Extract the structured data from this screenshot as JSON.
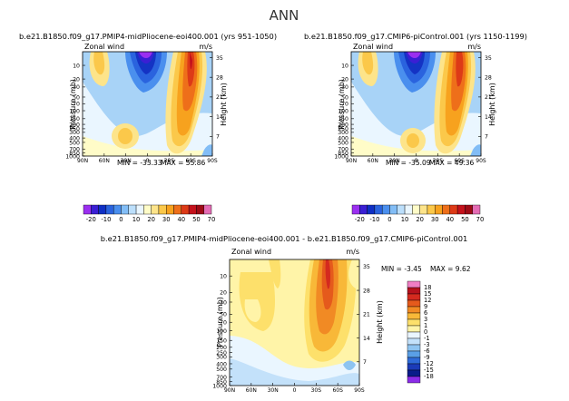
{
  "page_title": "ANN",
  "panels": [
    {
      "id": "left",
      "title": "b.e21.B1850.f09_g17.PMIP4-midPliocene-eoi400.001 (yrs 951-1050)",
      "variable": "Zonal wind",
      "units": "m/s",
      "min_text": "MIN = -33.33",
      "max_text": "MAX = 55.86"
    },
    {
      "id": "right",
      "title": "b.e21.B1850.f09_g17.CMIP6-piControl.001 (yrs 1150-1199)",
      "variable": "Zonal wind",
      "units": "m/s",
      "min_text": "MIN = -35.09",
      "max_text": "MAX = 49.36"
    },
    {
      "id": "diff",
      "title": "b.e21.B1850.f09_g17.PMIP4-midPliocene-eoi400.001 - b.e21.B1850.f09_g17.CMIP6-piControl.001",
      "variable": "Zonal wind",
      "units": "m/s",
      "min_text": "MIN = -3.45",
      "max_text": "MAX = 9.62"
    }
  ],
  "colorbar_top": {
    "labels": [
      "-20",
      "-10",
      "0",
      "10",
      "20",
      "30",
      "40",
      "50",
      "70"
    ],
    "colors": [
      "#9b2ff0",
      "#3a1fd4",
      "#0f2fc4",
      "#2a63de",
      "#4a8fee",
      "#82bdf6",
      "#bcdffb",
      "#eaf6ff",
      "#fffcc8",
      "#fde48a",
      "#fbc84a",
      "#f7a21e",
      "#ee6f1a",
      "#dd3a17",
      "#c4121c",
      "#9e0b16",
      "#e46cb4"
    ]
  },
  "colorbar_diff": {
    "labels": [
      "18",
      "15",
      "12",
      "9",
      "6",
      "3",
      "1",
      "0",
      "-1",
      "-3",
      "-6",
      "-9",
      "-12",
      "-15",
      "-18"
    ],
    "colors": [
      "#f07ec4",
      "#b5121d",
      "#d42a1f",
      "#e55a1c",
      "#f18a24",
      "#f8b838",
      "#fde06b",
      "#fff4a8",
      "#eaf6ff",
      "#c3e1fa",
      "#8ec4f1",
      "#5a9fe6",
      "#2f6bd8",
      "#1b3bb8",
      "#0a1c8a",
      "#8b2ce8"
    ]
  },
  "chart_data": [
    {
      "type": "contour",
      "panel": "left",
      "field": "Zonal wind (annual mean)",
      "x": [
        "90N",
        "60N",
        "30N",
        "0",
        "30S",
        "60S",
        "90S"
      ],
      "y_pressure_mb": [
        "10",
        "20",
        "30",
        "50",
        "70",
        "100",
        "150",
        "200",
        "250",
        "300",
        "400",
        "500",
        "700",
        "850",
        "1000"
      ],
      "y_height_km": [
        "35",
        "28",
        "21",
        "14",
        "7"
      ],
      "levels": [
        -20,
        -10,
        0,
        10,
        20,
        30,
        40,
        50,
        70
      ],
      "min": -33.33,
      "max": 55.86
    },
    {
      "type": "contour",
      "panel": "right",
      "field": "Zonal wind (annual mean)",
      "x": [
        "90N",
        "60N",
        "30N",
        "0",
        "30S",
        "60S",
        "90S"
      ],
      "y_pressure_mb": [
        "10",
        "20",
        "30",
        "50",
        "70",
        "100",
        "150",
        "200",
        "250",
        "300",
        "400",
        "500",
        "700",
        "850",
        "1000"
      ],
      "y_height_km": [
        "35",
        "28",
        "21",
        "14",
        "7"
      ],
      "levels": [
        -20,
        -10,
        0,
        10,
        20,
        30,
        40,
        50,
        70
      ],
      "min": -35.09,
      "max": 49.36
    },
    {
      "type": "contour",
      "panel": "diff",
      "field": "Zonal wind difference",
      "x": [
        "90N",
        "60N",
        "30N",
        "0",
        "30S",
        "60S",
        "90S"
      ],
      "y_pressure_mb": [
        "10",
        "20",
        "30",
        "50",
        "70",
        "100",
        "150",
        "200",
        "250",
        "300",
        "400",
        "500",
        "700",
        "850",
        "1000"
      ],
      "y_height_km": [
        "35",
        "28",
        "21",
        "14",
        "7"
      ],
      "levels": [
        -18,
        -15,
        -12,
        -9,
        -6,
        -3,
        -1,
        0,
        1,
        3,
        6,
        9,
        12,
        15,
        18
      ],
      "min": -3.45,
      "max": 9.62
    }
  ]
}
